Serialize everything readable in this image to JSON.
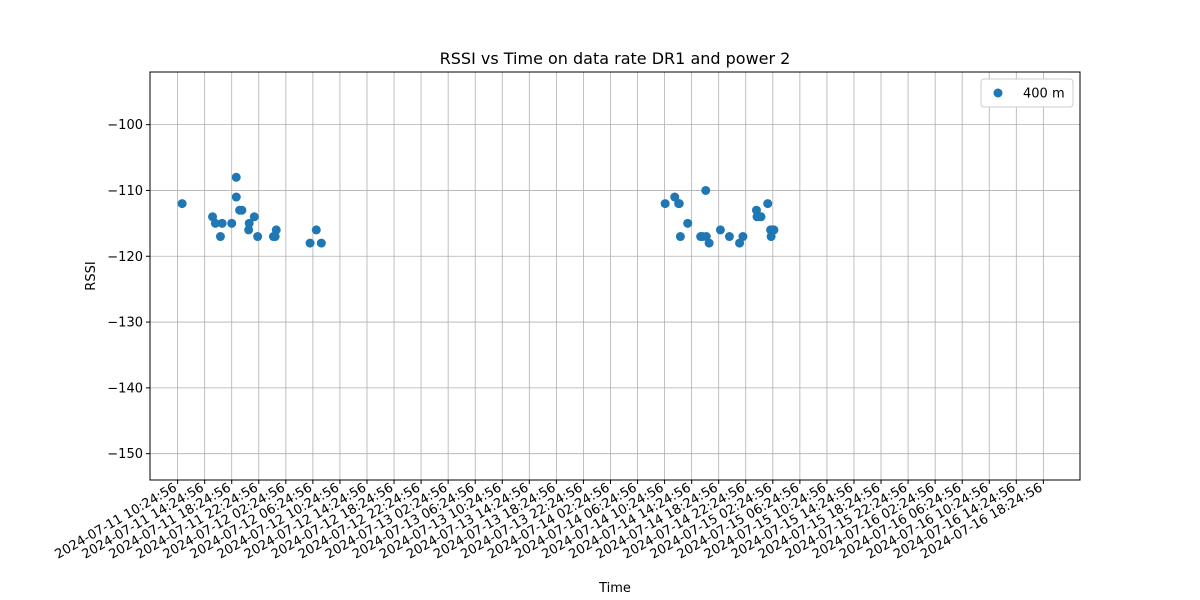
{
  "chart_data": {
    "type": "scatter",
    "title": "RSSI vs Time on data rate DR1 and power 2",
    "xlabel": "Time",
    "ylabel": "RSSI",
    "ylim": [
      -154,
      -92
    ],
    "xlim": [
      "2024-07-11 06:20:00",
      "2024-07-16 23:50:00"
    ],
    "yticks": [
      -150,
      -140,
      -130,
      -120,
      -110,
      -100
    ],
    "xticks": [
      "2024-07-11 10:24:56",
      "2024-07-11 14:24:56",
      "2024-07-11 18:24:56",
      "2024-07-11 22:24:56",
      "2024-07-12 02:24:56",
      "2024-07-12 06:24:56",
      "2024-07-12 10:24:56",
      "2024-07-12 14:24:56",
      "2024-07-12 18:24:56",
      "2024-07-12 22:24:56",
      "2024-07-13 02:24:56",
      "2024-07-13 06:24:56",
      "2024-07-13 10:24:56",
      "2024-07-13 14:24:56",
      "2024-07-13 18:24:56",
      "2024-07-13 22:24:56",
      "2024-07-14 02:24:56",
      "2024-07-14 06:24:56",
      "2024-07-14 10:24:56",
      "2024-07-14 14:24:56",
      "2024-07-14 18:24:56",
      "2024-07-14 22:24:56",
      "2024-07-15 02:24:56",
      "2024-07-15 06:24:56",
      "2024-07-15 10:24:56",
      "2024-07-15 14:24:56",
      "2024-07-15 18:24:56",
      "2024-07-15 22:24:56",
      "2024-07-16 02:24:56",
      "2024-07-16 06:24:56",
      "2024-07-16 10:24:56",
      "2024-07-16 14:24:56",
      "2024-07-16 18:24:56"
    ],
    "grid": true,
    "legend_position": "top-right",
    "series": [
      {
        "name": "400 m",
        "color": "#1f77b4",
        "marker": "circle",
        "points": [
          {
            "x": "2024-07-11 11:05:00",
            "y": -112
          },
          {
            "x": "2024-07-11 15:35:00",
            "y": -114
          },
          {
            "x": "2024-07-11 16:00:00",
            "y": -115
          },
          {
            "x": "2024-07-11 16:45:00",
            "y": -117
          },
          {
            "x": "2024-07-11 17:00:00",
            "y": -115
          },
          {
            "x": "2024-07-11 18:25:00",
            "y": -115
          },
          {
            "x": "2024-07-11 19:05:00",
            "y": -108
          },
          {
            "x": "2024-07-11 19:05:30",
            "y": -111
          },
          {
            "x": "2024-07-11 19:35:00",
            "y": -113
          },
          {
            "x": "2024-07-11 19:55:00",
            "y": -113
          },
          {
            "x": "2024-07-11 20:55:00",
            "y": -116
          },
          {
            "x": "2024-07-11 21:00:00",
            "y": -115
          },
          {
            "x": "2024-07-11 21:45:00",
            "y": -114
          },
          {
            "x": "2024-07-11 22:15:00",
            "y": -117
          },
          {
            "x": "2024-07-12 00:35:00",
            "y": -117
          },
          {
            "x": "2024-07-12 00:50:00",
            "y": -117
          },
          {
            "x": "2024-07-12 01:00:00",
            "y": -116
          },
          {
            "x": "2024-07-12 06:00:00",
            "y": -118
          },
          {
            "x": "2024-07-12 06:55:00",
            "y": -116
          },
          {
            "x": "2024-07-12 07:40:00",
            "y": -118
          },
          {
            "x": "2024-07-14 10:30:00",
            "y": -112
          },
          {
            "x": "2024-07-14 11:55:00",
            "y": -111
          },
          {
            "x": "2024-07-14 12:30:00",
            "y": -112
          },
          {
            "x": "2024-07-14 12:35:00",
            "y": -112
          },
          {
            "x": "2024-07-14 12:45:00",
            "y": -117
          },
          {
            "x": "2024-07-14 13:50:00",
            "y": -115
          },
          {
            "x": "2024-07-14 15:45:00",
            "y": -117
          },
          {
            "x": "2024-07-14 16:00:00",
            "y": -117
          },
          {
            "x": "2024-07-14 16:30:00",
            "y": -110
          },
          {
            "x": "2024-07-14 16:35:00",
            "y": -117
          },
          {
            "x": "2024-07-14 17:00:00",
            "y": -118
          },
          {
            "x": "2024-07-14 18:40:00",
            "y": -116
          },
          {
            "x": "2024-07-14 20:00:00",
            "y": -117
          },
          {
            "x": "2024-07-14 21:30:00",
            "y": -118
          },
          {
            "x": "2024-07-14 22:00:00",
            "y": -117
          },
          {
            "x": "2024-07-15 00:00:00",
            "y": -113
          },
          {
            "x": "2024-07-15 00:05:00",
            "y": -114
          },
          {
            "x": "2024-07-15 00:40:00",
            "y": -114
          },
          {
            "x": "2024-07-15 01:40:00",
            "y": -112
          },
          {
            "x": "2024-07-15 02:05:00",
            "y": -116
          },
          {
            "x": "2024-07-15 02:10:00",
            "y": -117
          },
          {
            "x": "2024-07-15 02:20:00",
            "y": -116
          },
          {
            "x": "2024-07-15 02:35:00",
            "y": -116
          }
        ]
      }
    ]
  }
}
